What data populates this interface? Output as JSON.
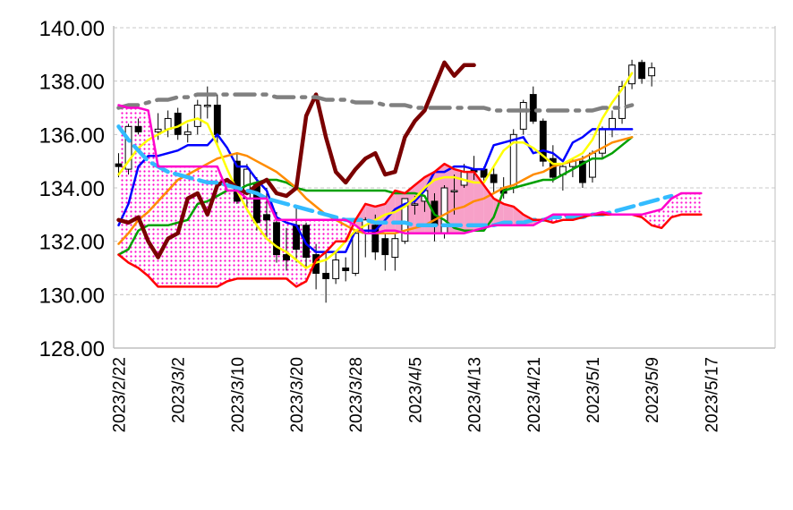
{
  "chart_data": {
    "type": "candlestick-ichimoku",
    "title": "",
    "xlabel": "",
    "ylabel": "",
    "ylim": [
      128,
      140
    ],
    "ytick_labels": [
      "140.00",
      "138.00",
      "136.00",
      "134.00",
      "132.00",
      "130.00",
      "128.00"
    ],
    "ytick_values": [
      140,
      138,
      136,
      134,
      132,
      130,
      128
    ],
    "grid": "horizontal-dashed",
    "legend": "none",
    "xtick_labels": [
      "2023/2/22",
      "2023/3/2",
      "2023/3/10",
      "2023/3/20",
      "2023/3/28",
      "2023/4/5",
      "2023/4/13",
      "2023/4/21",
      "2023/5/1",
      "2023/5/9",
      "2023/5/17"
    ],
    "xtick_index": [
      0,
      6,
      12,
      18,
      24,
      30,
      36,
      42,
      48,
      54,
      60
    ],
    "slots": 67,
    "candles_start": 0,
    "candles": [
      [
        134.9,
        135.3,
        134.4,
        134.8
      ],
      [
        134.7,
        136.4,
        134.5,
        136.3
      ],
      [
        136.3,
        136.6,
        136.0,
        136.1
      ],
      [
        136.1,
        136.8,
        135.8,
        136.2
      ],
      [
        136.2,
        136.9,
        135.9,
        136.6
      ],
      [
        136.8,
        137.0,
        135.8,
        136.0
      ],
      [
        136.0,
        136.4,
        135.7,
        136.1
      ],
      [
        136.3,
        137.3,
        136.0,
        137.1
      ],
      [
        137.1,
        137.8,
        136.6,
        137.1
      ],
      [
        137.1,
        137.5,
        135.6,
        136.0
      ],
      [
        135.0,
        135.3,
        133.4,
        133.5
      ],
      [
        133.6,
        134.9,
        133.3,
        134.7
      ],
      [
        134.2,
        134.4,
        132.4,
        132.7
      ],
      [
        133.0,
        134.0,
        132.1,
        132.8
      ],
      [
        132.7,
        133.1,
        131.2,
        131.5
      ],
      [
        131.5,
        132.5,
        130.9,
        131.3
      ],
      [
        132.6,
        133.3,
        131.2,
        131.7
      ],
      [
        132.6,
        132.7,
        131.0,
        131.4
      ],
      [
        131.5,
        131.9,
        130.2,
        130.8
      ],
      [
        130.8,
        131.6,
        129.7,
        130.6
      ],
      [
        130.6,
        131.6,
        130.4,
        131.3
      ],
      [
        131.0,
        131.4,
        130.5,
        130.9
      ],
      [
        130.8,
        132.4,
        130.7,
        132.3
      ],
      [
        132.3,
        132.9,
        131.4,
        132.8
      ],
      [
        132.6,
        133.0,
        131.3,
        131.6
      ],
      [
        132.1,
        132.3,
        130.9,
        131.5
      ],
      [
        131.4,
        132.3,
        130.9,
        132.1
      ],
      [
        132.0,
        133.6,
        131.9,
        133.6
      ],
      [
        133.4,
        133.7,
        133.0,
        133.4
      ],
      [
        133.5,
        133.9,
        133.1,
        133.9
      ],
      [
        133.5,
        133.8,
        132.0,
        132.6
      ],
      [
        132.3,
        134.1,
        132.1,
        134.0
      ],
      [
        133.9,
        134.5,
        133.0,
        133.9
      ],
      [
        134.1,
        134.9,
        134.0,
        134.6
      ],
      [
        134.7,
        135.2,
        134.3,
        134.6
      ],
      [
        134.7,
        134.8,
        134.2,
        134.4
      ],
      [
        134.5,
        134.8,
        133.8,
        134.2
      ],
      [
        134.0,
        134.4,
        133.6,
        133.8
      ],
      [
        134.0,
        136.2,
        133.8,
        136.0
      ],
      [
        136.2,
        137.3,
        136.0,
        137.2
      ],
      [
        137.5,
        137.8,
        136.4,
        136.5
      ],
      [
        136.5,
        136.6,
        134.8,
        135.0
      ],
      [
        135.1,
        135.6,
        134.2,
        134.4
      ],
      [
        134.5,
        134.9,
        133.9,
        134.8
      ],
      [
        134.8,
        135.1,
        134.4,
        135.0
      ],
      [
        135.0,
        135.2,
        134.0,
        134.2
      ],
      [
        134.4,
        135.4,
        134.2,
        135.3
      ],
      [
        135.3,
        136.3,
        135.1,
        136.2
      ],
      [
        136.2,
        136.9,
        135.9,
        136.6
      ],
      [
        136.6,
        138.0,
        136.4,
        137.8
      ],
      [
        137.9,
        138.8,
        137.7,
        138.6
      ],
      [
        138.7,
        138.8,
        137.9,
        138.1
      ],
      [
        138.2,
        138.7,
        137.8,
        138.5
      ]
    ],
    "candle_slots": [
      0,
      1,
      2,
      4,
      5,
      6,
      7,
      8,
      9,
      10,
      12,
      13,
      14,
      15,
      16,
      17,
      18,
      19,
      20,
      21,
      22,
      23,
      24,
      25,
      26,
      27,
      28,
      29,
      30,
      31,
      32,
      33,
      34,
      35,
      36,
      37,
      38,
      39,
      40,
      41,
      42,
      43,
      44,
      45,
      46,
      47,
      48,
      49,
      50,
      51,
      52,
      53,
      54
    ],
    "series": [
      {
        "color": "#0000ff",
        "width": 2.5,
        "dash": "",
        "start": 0,
        "values": [
          132.6,
          133.4,
          134.8,
          135.2,
          135.2,
          135.3,
          135.4,
          135.6,
          135.6,
          135.6,
          136.0,
          135.5,
          134.8,
          134.8,
          134.3,
          133.9,
          132.9,
          132.7,
          132.6,
          131.9,
          131.6,
          131.6,
          131.6,
          131.6,
          132.4,
          132.4,
          132.4,
          132.8,
          133.2,
          133.4,
          133.5,
          133.9,
          134.6,
          134.6,
          134.8,
          134.8,
          134.7,
          134.7,
          135.6,
          135.7,
          135.8,
          135.9,
          135.3,
          135.4,
          135.3,
          135.0,
          135.7,
          135.9,
          136.2,
          136.2,
          136.2,
          136.2,
          136.2
        ]
      },
      {
        "color": "#00a000",
        "width": 2.5,
        "dash": "",
        "start": 0,
        "values": [
          131.5,
          131.7,
          132.4,
          132.6,
          132.6,
          132.6,
          132.7,
          132.8,
          133.4,
          133.5,
          133.7,
          133.9,
          133.9,
          134.1,
          134.2,
          134.3,
          134.3,
          134.2,
          134.0,
          133.9,
          133.9,
          133.9,
          133.9,
          133.9,
          133.9,
          133.9,
          133.9,
          133.9,
          133.8,
          133.8,
          133.8,
          133.7,
          133.0,
          132.8,
          132.5,
          132.4,
          132.4,
          132.4,
          132.9,
          133.9,
          134.0,
          134.1,
          134.2,
          134.3,
          134.3,
          134.5,
          134.7,
          134.9,
          135.1,
          135.1,
          135.3,
          135.6,
          135.9
        ]
      },
      {
        "color": "#ff8c00",
        "width": 2.5,
        "dash": "",
        "start": 0,
        "values": [
          131.9,
          132.3,
          132.8,
          133.1,
          133.5,
          133.9,
          134.3,
          134.5,
          134.7,
          134.9,
          135.1,
          135.2,
          135.3,
          135.2,
          135.0,
          134.8,
          134.6,
          134.3,
          134.0,
          133.6,
          133.3,
          133.0,
          132.8,
          132.6,
          132.4,
          132.3,
          132.3,
          132.3,
          132.3,
          132.4,
          132.5,
          132.6,
          132.8,
          133.0,
          133.2,
          133.3,
          133.5,
          133.6,
          133.8,
          134.0,
          134.1,
          134.3,
          134.5,
          134.6,
          134.8,
          134.9,
          135.0,
          135.1,
          135.3,
          135.5,
          135.7,
          135.8,
          135.9
        ]
      },
      {
        "color": "#ffff00",
        "width": 2.5,
        "dash": "",
        "start": 0,
        "values": [
          134.5,
          135.0,
          135.5,
          135.8,
          136.0,
          136.2,
          136.3,
          136.5,
          136.6,
          136.4,
          135.6,
          134.7,
          133.9,
          133.2,
          132.6,
          132.1,
          131.8,
          131.6,
          131.3,
          131.0,
          131.2,
          131.3,
          131.6,
          132.0,
          132.4,
          132.6,
          132.8,
          133.0,
          133.1,
          133.3,
          133.6,
          134.0,
          134.3,
          134.4,
          134.4,
          134.3,
          134.2,
          134.2,
          134.8,
          135.4,
          135.7,
          135.7,
          135.5,
          135.2,
          134.9,
          134.9,
          135.1,
          135.3,
          135.8,
          136.6,
          137.2,
          137.7,
          138.3
        ]
      },
      {
        "color": "#7a0000",
        "width": 4.5,
        "dash": "",
        "start": 0,
        "values": [
          132.8,
          132.7,
          132.9,
          132.0,
          131.4,
          132.1,
          132.3,
          133.6,
          133.8,
          133.0,
          134.1,
          134.3,
          134.0,
          133.8,
          134.1,
          134.3,
          133.8,
          133.7,
          134.0,
          136.7,
          137.5,
          135.9,
          134.6,
          134.2,
          134.7,
          135.1,
          135.3,
          134.5,
          134.6,
          135.9,
          136.5,
          136.9,
          137.8,
          138.7,
          138.2,
          138.6,
          138.6
        ]
      },
      {
        "color": "#808080",
        "width": 4.5,
        "dash": "22,9,4,9",
        "start": 0,
        "values": [
          137.0,
          137.1,
          137.1,
          137.2,
          137.3,
          137.3,
          137.4,
          137.4,
          137.5,
          137.5,
          137.5,
          137.5,
          137.5,
          137.5,
          137.5,
          137.5,
          137.4,
          137.4,
          137.4,
          137.4,
          137.4,
          137.3,
          137.3,
          137.3,
          137.2,
          137.2,
          137.2,
          137.1,
          137.1,
          137.1,
          137.0,
          137.0,
          137.0,
          137.0,
          137.0,
          137.0,
          137.0,
          137.0,
          136.9,
          136.9,
          136.9,
          136.9,
          136.9,
          136.9,
          136.9,
          136.9,
          136.9,
          136.9,
          136.9,
          137.0,
          137.0,
          137.0,
          137.1
        ]
      },
      {
        "color": "#33bbff",
        "width": 4.5,
        "dash": "20,8",
        "start": 0,
        "values": [
          136.3,
          135.8,
          135.4,
          135.0,
          134.8,
          134.6,
          134.5,
          134.4,
          134.3,
          134.2,
          134.2,
          134.1,
          134.0,
          133.9,
          133.8,
          133.6,
          133.5,
          133.4,
          133.3,
          133.2,
          133.1,
          133.0,
          132.9,
          132.8,
          132.8,
          132.8,
          132.7,
          132.7,
          132.7,
          132.7,
          132.6,
          132.6,
          132.6,
          132.6,
          132.6,
          132.6,
          132.6,
          132.6,
          132.6,
          132.7,
          132.7,
          132.7,
          132.8,
          132.8,
          132.9,
          132.9,
          132.9,
          132.9,
          133.0,
          133.0,
          133.1,
          133.2,
          133.3,
          133.4,
          133.5,
          133.6,
          133.7
        ]
      },
      {
        "color": "#ff0000",
        "width": 2.5,
        "dash": "",
        "start": 0,
        "values": [
          131.5,
          131.2,
          131.0,
          130.7,
          130.3,
          130.3,
          130.3,
          130.3,
          130.3,
          130.3,
          130.3,
          130.5,
          130.6,
          130.6,
          130.6,
          130.6,
          130.6,
          130.6,
          130.3,
          130.5,
          131.3,
          131.6,
          132.0,
          132.0,
          132.8,
          133.4,
          133.3,
          133.4,
          133.9,
          133.8,
          134.1,
          134.4,
          134.6,
          134.9,
          134.7,
          134.6,
          134.6,
          134.1,
          133.6,
          133.4,
          133.3,
          133.0,
          132.8,
          132.8,
          132.7,
          132.8,
          132.8,
          132.9,
          133.0,
          133.0,
          133.0,
          133.0,
          133.0,
          132.9,
          132.6,
          132.5,
          132.9,
          133.0,
          133.0,
          133.0
        ]
      },
      {
        "color": "#ff00cc",
        "width": 2.5,
        "dash": "",
        "start": 0,
        "values": [
          137.1,
          137.0,
          137.0,
          136.9,
          134.8,
          134.8,
          134.8,
          134.8,
          134.8,
          134.8,
          134.8,
          133.9,
          133.9,
          133.6,
          133.6,
          133.6,
          132.8,
          132.8,
          132.8,
          132.8,
          132.8,
          132.8,
          132.8,
          132.8,
          132.6,
          132.3,
          132.3,
          132.4,
          132.4,
          132.3,
          132.3,
          132.3,
          132.3,
          132.3,
          132.3,
          132.3,
          132.4,
          132.5,
          132.6,
          132.6,
          132.6,
          132.6,
          132.6,
          132.8,
          133.0,
          133.0,
          133.0,
          133.0,
          133.0,
          133.1,
          133.0,
          133.0,
          133.0,
          133.0,
          133.1,
          133.2,
          133.6,
          133.8,
          133.8,
          133.8
        ]
      }
    ],
    "cloud": {
      "span_a_index": 8,
      "span_b_index": 7,
      "start": 0
    },
    "colors": {
      "bull_candle": "#ffffff",
      "bear_candle": "#000000",
      "cloud_fill_bear": "#ff66cc",
      "cloud_fill_bull": "#f7a0c8",
      "grid": "#c8c8c8",
      "axis": "#bfbfbf"
    }
  }
}
